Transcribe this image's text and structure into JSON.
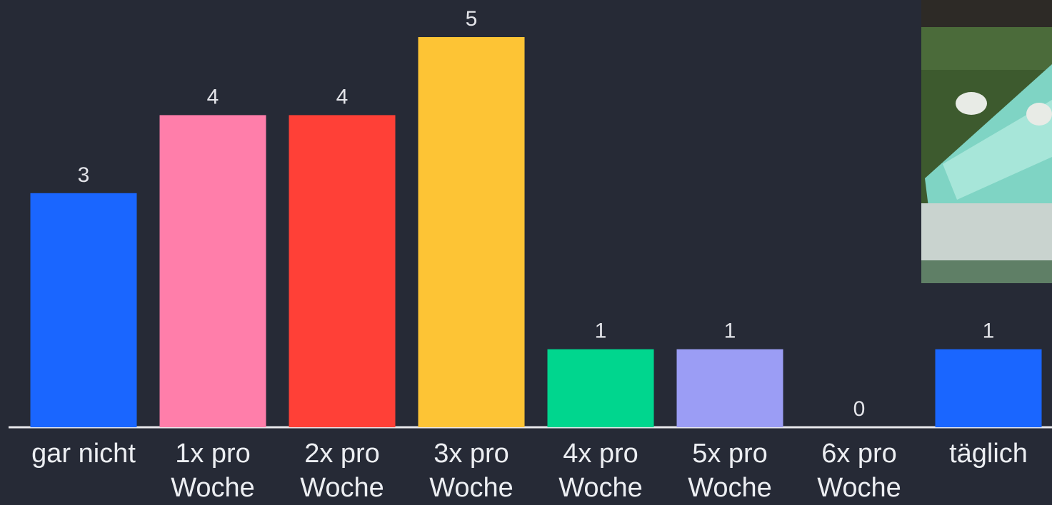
{
  "chart_data": {
    "type": "bar",
    "categories": [
      "gar nicht",
      "1x pro Woche",
      "2x pro Woche",
      "3x pro Woche",
      "4x pro Woche",
      "5x pro Woche",
      "6x pro Woche",
      "täglich"
    ],
    "values": [
      3,
      4,
      4,
      5,
      1,
      1,
      0,
      1
    ],
    "colors": [
      "#1a66ff",
      "#ff7eaa",
      "#ff4037",
      "#fdc435",
      "#00d68e",
      "#9b9df5",
      "#9b9df5",
      "#1a66ff"
    ]
  }
}
